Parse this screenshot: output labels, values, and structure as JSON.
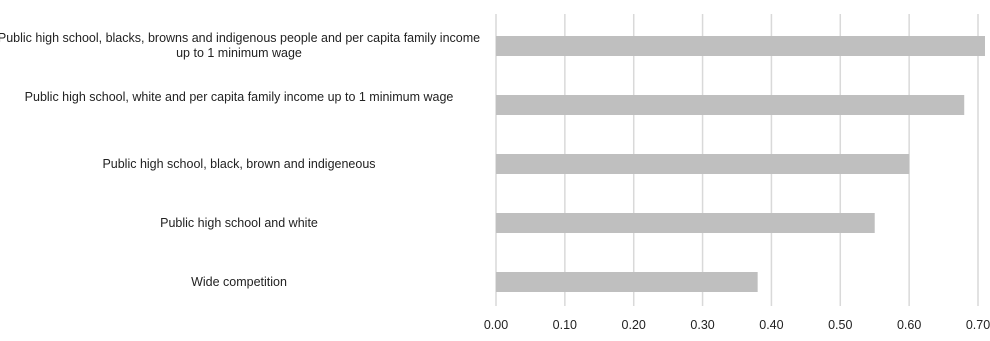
{
  "chart_data": {
    "type": "bar",
    "orientation": "horizontal",
    "categories": [
      "Public high school, blacks, browns and indigenous people and per capita family income up to 1 minimum wage",
      "Public high school, white and per capita family income up to 1 minimum wage",
      "Public high school, black, brown and indigeneous",
      "Public high school and white",
      "Wide competition"
    ],
    "values": [
      0.72,
      0.68,
      0.6,
      0.55,
      0.38
    ],
    "xlim": [
      0,
      0.7
    ],
    "xticks": [
      "0.00",
      "0.10",
      "0.20",
      "0.30",
      "0.40",
      "0.50",
      "0.60",
      "0.70"
    ],
    "grid": true,
    "bar_color": "#bfbfbf",
    "grid_color": "#d9d9d9"
  }
}
